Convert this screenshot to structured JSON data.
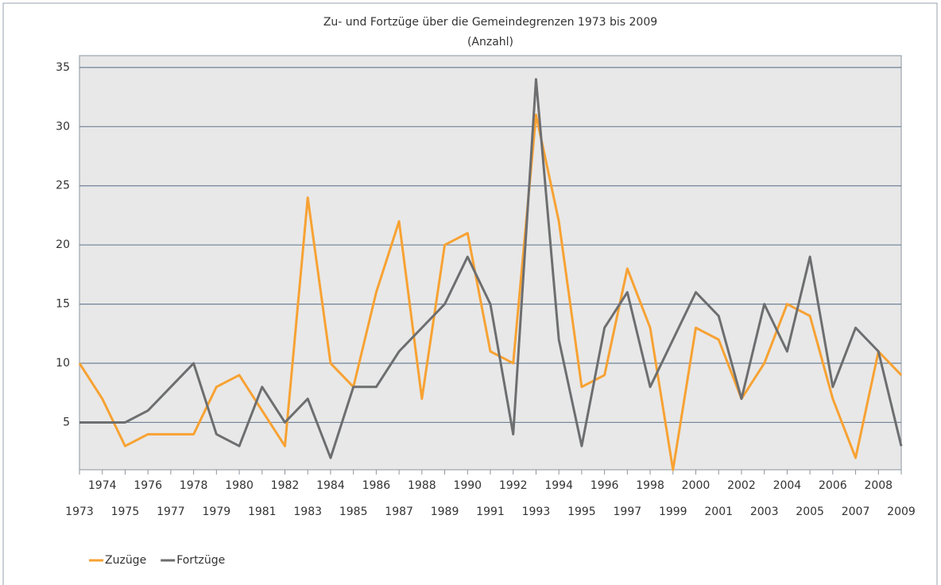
{
  "chart_data": {
    "type": "line",
    "title": "Zu- und Fortzüge über die Gemeindegrenzen 1973 bis 2009",
    "subtitle": "(Anzahl)",
    "categories": [
      "1973",
      "1974",
      "1975",
      "1976",
      "1977",
      "1978",
      "1979",
      "1980",
      "1981",
      "1982",
      "1983",
      "1984",
      "1985",
      "1986",
      "1987",
      "1988",
      "1989",
      "1990",
      "1991",
      "1992",
      "1993",
      "1994",
      "1995",
      "1996",
      "1997",
      "1998",
      "1999",
      "2000",
      "2001",
      "2002",
      "2003",
      "2004",
      "2005",
      "2006",
      "2007",
      "2008",
      "2009"
    ],
    "series": [
      {
        "name": "Zuzüge",
        "color": "#f7a233",
        "values": [
          10,
          7,
          3,
          4,
          4,
          4,
          8,
          9,
          6,
          3,
          24,
          10,
          8,
          16,
          22,
          7,
          20,
          21,
          11,
          10,
          31,
          22,
          8,
          9,
          18,
          13,
          1,
          13,
          12,
          7,
          10,
          15,
          14,
          7,
          2,
          11,
          9
        ]
      },
      {
        "name": "Fortzüge",
        "color": "#6d6e70",
        "values": [
          5,
          5,
          5,
          6,
          8,
          10,
          4,
          3,
          8,
          5,
          7,
          2,
          8,
          8,
          11,
          13,
          15,
          19,
          15,
          4,
          34,
          12,
          3,
          13,
          16,
          8,
          12,
          16,
          14,
          7,
          15,
          11,
          19,
          8,
          13,
          11,
          3
        ]
      }
    ],
    "ylim": [
      1,
      36
    ],
    "yticks": [
      5,
      10,
      15,
      20,
      25,
      30,
      35
    ],
    "grid": true,
    "legend": "bottom-left"
  }
}
